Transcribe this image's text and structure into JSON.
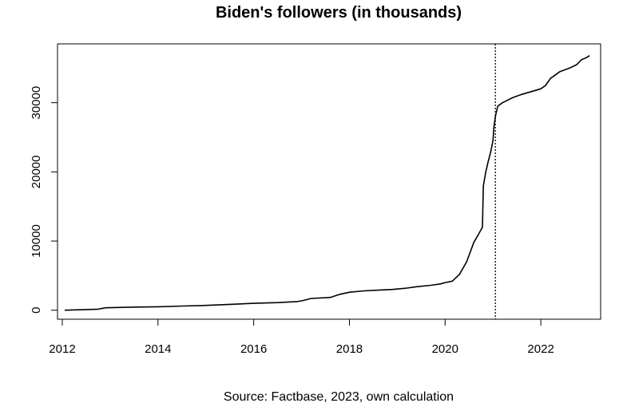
{
  "chart_data": {
    "type": "line",
    "title": "Biden's followers (in thousands)",
    "caption": "Source: Factbase, 2023, own calculation",
    "xlabel": "",
    "ylabel": "",
    "x_ticks": [
      "2012",
      "2014",
      "2016",
      "2018",
      "2020",
      "2022"
    ],
    "y_ticks": [
      "0",
      "10000",
      "20000",
      "30000"
    ],
    "xlim": [
      2011.9,
      2023.25
    ],
    "ylim": [
      -1300,
      38500
    ],
    "grid": false,
    "legend": "none",
    "reference_line": {
      "x": 2021.05,
      "style": "dotted"
    },
    "series": [
      {
        "x": [
          2012.05,
          2012.5,
          2012.75,
          2012.9,
          2013.5,
          2014.0,
          2014.5,
          2015.0,
          2015.5,
          2016.0,
          2016.5,
          2016.9,
          2017.0,
          2017.2,
          2017.6,
          2017.8,
          2018.0,
          2018.3,
          2018.6,
          2018.9,
          2019.2,
          2019.4,
          2019.7,
          2019.9,
          2020.0,
          2020.15,
          2020.3,
          2020.45,
          2020.6,
          2020.7,
          2020.78,
          2020.8,
          2020.85,
          2020.9,
          2020.95,
          2021.0,
          2021.02,
          2021.05,
          2021.1,
          2021.2,
          2021.4,
          2021.6,
          2021.8,
          2022.0,
          2022.1,
          2022.2,
          2022.4,
          2022.6,
          2022.75,
          2022.85,
          2022.95,
          2023.02
        ],
        "y": [
          0,
          100,
          150,
          350,
          450,
          500,
          600,
          700,
          850,
          1000,
          1100,
          1250,
          1350,
          1700,
          1850,
          2300,
          2600,
          2800,
          2900,
          3000,
          3200,
          3400,
          3600,
          3800,
          4000,
          4200,
          5200,
          7000,
          9800,
          11000,
          12000,
          18000,
          20000,
          21500,
          22800,
          24500,
          26500,
          28000,
          29500,
          30000,
          30700,
          31200,
          31600,
          32000,
          32500,
          33500,
          34500,
          35000,
          35500,
          36200,
          36500,
          36800
        ]
      }
    ]
  }
}
